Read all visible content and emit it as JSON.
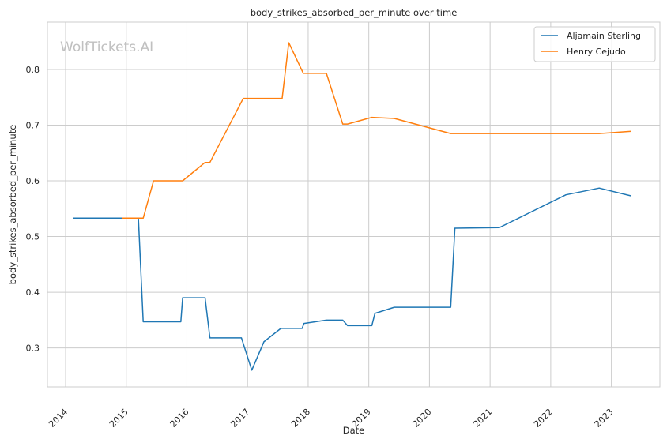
{
  "chart_data": {
    "type": "line",
    "title": "body_strikes_absorbed_per_minute over time",
    "xlabel": "Date",
    "ylabel": "body_strikes_absorbed_per_minute",
    "watermark": "WolfTickets.AI",
    "x_ticks": [
      "2014",
      "2015",
      "2016",
      "2017",
      "2018",
      "2019",
      "2020",
      "2021",
      "2022",
      "2023"
    ],
    "y_ticks": [
      "0.3",
      "0.4",
      "0.5",
      "0.6",
      "0.7",
      "0.8"
    ],
    "xlim": [
      2013.7,
      2023.8
    ],
    "ylim": [
      0.23,
      0.885
    ],
    "grid": true,
    "legend_position": "top-right",
    "colors": {
      "Aljamain Sterling": "#1f77b4",
      "Henry Cejudo": "#ff7f0e"
    },
    "series": [
      {
        "name": "Aljamain Sterling",
        "x": [
          2014.13,
          2015.2,
          2015.28,
          2015.9,
          2015.93,
          2016.3,
          2016.38,
          2016.9,
          2017.07,
          2017.27,
          2017.55,
          2017.9,
          2017.93,
          2018.3,
          2018.57,
          2018.65,
          2019.05,
          2019.1,
          2019.42,
          2020.35,
          2020.42,
          2021.15,
          2022.25,
          2022.8,
          2023.33
        ],
        "y": [
          0.533,
          0.533,
          0.347,
          0.347,
          0.39,
          0.39,
          0.318,
          0.318,
          0.26,
          0.311,
          0.335,
          0.335,
          0.344,
          0.35,
          0.35,
          0.34,
          0.34,
          0.362,
          0.373,
          0.373,
          0.515,
          0.516,
          0.575,
          0.587,
          0.573
        ]
      },
      {
        "name": "Henry Cejudo",
        "x": [
          2014.93,
          2015.28,
          2015.45,
          2015.93,
          2016.3,
          2016.38,
          2016.93,
          2017.57,
          2017.68,
          2017.92,
          2018.3,
          2018.57,
          2018.65,
          2019.05,
          2019.42,
          2020.35,
          2021.15,
          2022.8,
          2023.33
        ],
        "y": [
          0.533,
          0.533,
          0.6,
          0.6,
          0.633,
          0.633,
          0.748,
          0.748,
          0.848,
          0.793,
          0.793,
          0.702,
          0.702,
          0.714,
          0.712,
          0.685,
          0.685,
          0.685,
          0.689
        ]
      }
    ]
  }
}
